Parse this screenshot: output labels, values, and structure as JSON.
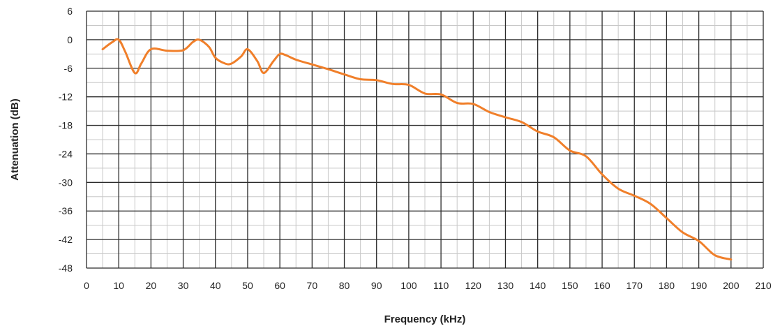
{
  "chart_data": {
    "type": "line",
    "title": "",
    "xlabel": "Frequency (kHz)",
    "ylabel": "Attenuation (dB)",
    "xlim": [
      0,
      210
    ],
    "ylim": [
      -48,
      6
    ],
    "x_ticks": [
      0,
      10,
      20,
      30,
      40,
      50,
      60,
      70,
      80,
      90,
      100,
      110,
      120,
      130,
      140,
      150,
      160,
      170,
      180,
      190,
      200,
      210
    ],
    "y_ticks": [
      6,
      0,
      -6,
      -12,
      -18,
      -24,
      -30,
      -36,
      -42,
      -48
    ],
    "grid": true,
    "minor_grid": true,
    "legend": "none",
    "colors": {
      "line": "#f07f2a",
      "major_grid": "#2b2b2b",
      "minor_grid": "#c8c8c8"
    },
    "series": [
      {
        "x": [
          5,
          8,
          10,
          12,
          15,
          17,
          20,
          25,
          30,
          33,
          35,
          38,
          40,
          43,
          45,
          48,
          50,
          53,
          55,
          58,
          60,
          62,
          65,
          70,
          75,
          80,
          85,
          90,
          95,
          100,
          105,
          110,
          115,
          120,
          125,
          130,
          135,
          140,
          145,
          150,
          155,
          160,
          165,
          170,
          175,
          180,
          185,
          190,
          195,
          200
        ],
        "y": [
          -2,
          -0.5,
          0,
          -2.5,
          -7,
          -5,
          -2,
          -2.3,
          -2.2,
          -0.5,
          0,
          -1.5,
          -3.8,
          -5,
          -5,
          -3.5,
          -2,
          -4.5,
          -7,
          -4.5,
          -3,
          -3.3,
          -4.2,
          -5.2,
          -6.2,
          -7.3,
          -8.3,
          -8.5,
          -9.3,
          -9.5,
          -11.3,
          -11.5,
          -13.3,
          -13.5,
          -15.2,
          -16.3,
          -17.3,
          -19.3,
          -20.5,
          -23.3,
          -24.5,
          -28.3,
          -31.3,
          -32.8,
          -34.5,
          -37.5,
          -40.5,
          -42.3,
          -45.3,
          -46.2
        ]
      }
    ]
  }
}
